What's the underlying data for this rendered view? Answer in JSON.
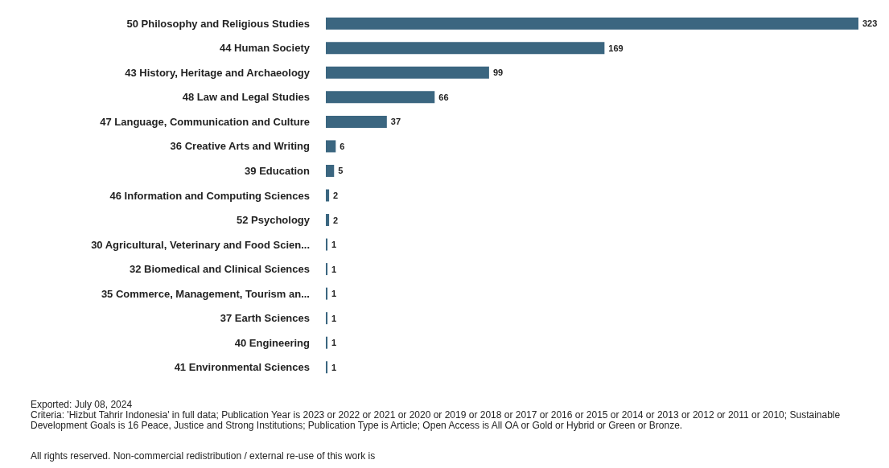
{
  "chart_data": {
    "type": "bar",
    "orientation": "horizontal",
    "data_labels": true,
    "color": "#3b6680",
    "categories": [
      "50 Philosophy and Religious Studies",
      "44 Human Society",
      "43 History, Heritage and Archaeology",
      "48 Law and Legal Studies",
      "47 Language, Communication and Culture",
      "36 Creative Arts and Writing",
      "39 Education",
      "46 Information and Computing Sciences",
      "52 Psychology",
      "30 Agricultural, Veterinary and Food Scien...",
      "32 Biomedical and Clinical Sciences",
      "35 Commerce, Management, Tourism an...",
      "37 Earth Sciences",
      "40 Engineering",
      "41 Environmental Sciences"
    ],
    "values": [
      323,
      169,
      99,
      66,
      37,
      6,
      5,
      2,
      2,
      1,
      1,
      1,
      1,
      1,
      1
    ],
    "annotations": [
      "Exported: July 08, 2024",
      "Criteria: 'Hizbut Tahrir Indonesia' in full data; Publication Year is 2023 or 2022 or 2021 or 2020 or 2019 or 2018 or 2017 or 2016 or 2015 or 2014 or 2013 or 2012 or 2011 or 2010; Sustainable Development Goals is 16 Peace, Justice and Strong Institutions; Publication Type is Article; Open Access is All OA or Gold or Hybrid or Green or Bronze.",
      "All rights reserved. Non-commercial redistribution / external re-use of this work is"
    ]
  }
}
